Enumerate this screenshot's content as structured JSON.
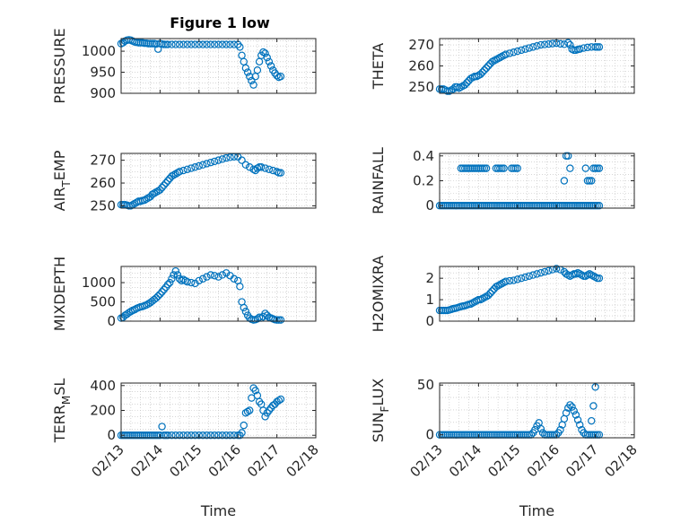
{
  "title": "Figure 1 low",
  "colors": {
    "marker": "#0072BD",
    "axis": "#262626",
    "grid": "#bdbdbd"
  },
  "chart_data": [
    {
      "type": "scatter",
      "id": "pressure",
      "ylabel_main": "PRESSURE",
      "ylabel_sub": "",
      "ylabel_tail": "",
      "xlim": [
        13,
        18
      ],
      "ylim": [
        900,
        1030
      ],
      "yticks": [
        900,
        950,
        1000
      ],
      "ytick_labels": [
        "900",
        "950",
        "1000"
      ],
      "x": [
        13.0,
        13.05,
        13.1,
        13.15,
        13.2,
        13.25,
        13.3,
        13.35,
        13.4,
        13.45,
        13.5,
        13.55,
        13.6,
        13.65,
        13.7,
        13.75,
        13.8,
        13.85,
        13.9,
        13.95,
        14.0,
        14.05,
        14.1,
        14.15,
        14.2,
        14.3,
        14.4,
        14.5,
        14.6,
        14.7,
        14.8,
        14.9,
        15.0,
        15.1,
        15.2,
        15.3,
        15.4,
        15.5,
        15.6,
        15.7,
        15.8,
        15.9,
        16.0,
        16.05,
        16.1,
        16.15,
        16.2,
        16.25,
        16.3,
        16.35,
        16.4,
        16.45,
        16.5,
        16.55,
        16.6,
        16.65,
        16.7,
        16.75,
        16.8,
        16.85,
        16.9,
        16.95,
        17.0,
        17.05,
        17.1
      ],
      "y": [
        1018,
        1020,
        1024,
        1026,
        1027,
        1026,
        1024,
        1022,
        1021,
        1020,
        1020,
        1020,
        1019,
        1019,
        1018,
        1018,
        1018,
        1018,
        1017,
        1005,
        1018,
        1017,
        1016,
        1016,
        1016,
        1016,
        1016,
        1016,
        1016,
        1016,
        1016,
        1016,
        1016,
        1016,
        1016,
        1016,
        1016,
        1016,
        1016,
        1016,
        1016,
        1016,
        1016,
        1010,
        990,
        975,
        960,
        950,
        940,
        930,
        920,
        940,
        955,
        975,
        990,
        998,
        995,
        985,
        975,
        965,
        955,
        948,
        942,
        938,
        940
      ]
    },
    {
      "type": "scatter",
      "id": "theta",
      "ylabel_main": "THETA",
      "ylabel_sub": "",
      "ylabel_tail": "",
      "xlim": [
        13,
        18
      ],
      "ylim": [
        247,
        273
      ],
      "yticks": [
        250,
        260,
        270
      ],
      "ytick_labels": [
        "250",
        "260",
        "270"
      ],
      "x": [
        13.0,
        13.05,
        13.1,
        13.15,
        13.2,
        13.25,
        13.3,
        13.35,
        13.4,
        13.45,
        13.5,
        13.55,
        13.6,
        13.65,
        13.7,
        13.75,
        13.8,
        13.85,
        13.9,
        13.95,
        14.0,
        14.05,
        14.1,
        14.15,
        14.2,
        14.25,
        14.3,
        14.35,
        14.4,
        14.45,
        14.5,
        14.55,
        14.6,
        14.65,
        14.7,
        14.8,
        14.9,
        15.0,
        15.1,
        15.2,
        15.3,
        15.4,
        15.5,
        15.6,
        15.7,
        15.8,
        15.9,
        16.0,
        16.1,
        16.2,
        16.3,
        16.35,
        16.4,
        16.45,
        16.5,
        16.55,
        16.6,
        16.7,
        16.8,
        16.9,
        17.0,
        17.05,
        17.1
      ],
      "y": [
        249,
        249,
        249,
        248.5,
        248,
        248,
        248.5,
        249,
        250,
        250,
        249.5,
        250,
        250.5,
        251,
        252,
        253,
        254,
        254.5,
        255,
        255,
        255.5,
        256,
        257,
        258,
        259,
        260,
        261,
        262,
        262.5,
        263,
        263.5,
        264,
        264.5,
        265,
        265.5,
        266,
        266.5,
        267,
        267.5,
        268,
        268.5,
        269,
        269.5,
        270,
        270.2,
        270.4,
        270.6,
        270.8,
        270.5,
        270.3,
        271,
        270,
        268,
        267.5,
        267.5,
        267.8,
        268,
        268.5,
        268.8,
        269,
        269,
        269,
        269
      ]
    },
    {
      "type": "scatter",
      "id": "air_temp",
      "ylabel_main": "AIR",
      "ylabel_sub": "T",
      "ylabel_tail": "EMP",
      "xlim": [
        13,
        18
      ],
      "ylim": [
        249,
        273
      ],
      "yticks": [
        250,
        260,
        270
      ],
      "ytick_labels": [
        "250",
        "260",
        "270"
      ],
      "x": [
        13.0,
        13.05,
        13.1,
        13.15,
        13.2,
        13.25,
        13.3,
        13.35,
        13.4,
        13.45,
        13.5,
        13.55,
        13.6,
        13.65,
        13.7,
        13.75,
        13.8,
        13.85,
        13.9,
        13.95,
        14.0,
        14.05,
        14.1,
        14.15,
        14.2,
        14.25,
        14.3,
        14.35,
        14.4,
        14.45,
        14.5,
        14.6,
        14.7,
        14.8,
        14.9,
        15.0,
        15.1,
        15.2,
        15.3,
        15.4,
        15.5,
        15.6,
        15.7,
        15.8,
        15.9,
        16.0,
        16.1,
        16.2,
        16.3,
        16.4,
        16.45,
        16.5,
        16.55,
        16.6,
        16.7,
        16.8,
        16.9,
        17.0,
        17.05,
        17.1
      ],
      "y": [
        250.5,
        250.5,
        250.5,
        250.3,
        250,
        250,
        250.5,
        251,
        251.5,
        252,
        252,
        252.3,
        252.5,
        253,
        253.5,
        254,
        255,
        255.5,
        256,
        256.5,
        257,
        258,
        259,
        260,
        261,
        262,
        263,
        263.5,
        264,
        264.5,
        265,
        265.5,
        266,
        266.5,
        267,
        267.5,
        268,
        268.5,
        269,
        269.5,
        270,
        270.5,
        271,
        271.3,
        271.5,
        271.5,
        270,
        268,
        267,
        266,
        265.5,
        266.5,
        267,
        267,
        266.5,
        266,
        265.5,
        265,
        264.5,
        264.5
      ]
    },
    {
      "type": "scatter",
      "id": "rainfall",
      "ylabel_main": "RAINFALL",
      "ylabel_sub": "",
      "ylabel_tail": "",
      "xlim": [
        13,
        18
      ],
      "ylim": [
        -0.02,
        0.42
      ],
      "yticks": [
        0,
        0.2,
        0.4
      ],
      "ytick_labels": [
        "0",
        "0.2",
        "0.4"
      ],
      "x": [
        13.0,
        13.05,
        13.1,
        13.15,
        13.2,
        13.25,
        13.3,
        13.35,
        13.4,
        13.45,
        13.5,
        13.55,
        13.6,
        13.65,
        13.7,
        13.75,
        13.8,
        13.85,
        13.9,
        13.95,
        14.0,
        14.05,
        14.1,
        14.15,
        14.2,
        14.25,
        14.3,
        14.35,
        14.4,
        14.45,
        14.5,
        14.55,
        14.6,
        14.65,
        14.7,
        14.75,
        14.8,
        14.85,
        14.9,
        14.95,
        15.0,
        15.05,
        15.1,
        15.15,
        15.2,
        15.25,
        15.3,
        15.35,
        15.4,
        15.45,
        15.5,
        15.55,
        15.6,
        15.65,
        15.7,
        15.75,
        15.8,
        15.85,
        15.9,
        15.95,
        16.0,
        16.05,
        16.1,
        16.15,
        16.2,
        16.25,
        16.3,
        16.35,
        16.4,
        16.45,
        16.5,
        16.55,
        16.6,
        16.65,
        16.7,
        16.75,
        16.8,
        16.85,
        16.9,
        16.95,
        17.0,
        17.05,
        17.1,
        13.55,
        13.6,
        13.65,
        13.7,
        13.75,
        13.8,
        13.85,
        13.9,
        13.95,
        14.0,
        14.05,
        14.1,
        14.15,
        14.2,
        14.45,
        14.5,
        14.55,
        14.6,
        14.65,
        14.85,
        14.9,
        14.95,
        15.0,
        16.2,
        16.25,
        16.3,
        16.35,
        16.75,
        16.8,
        16.85,
        16.9,
        16.95,
        17.0,
        17.05,
        17.1
      ],
      "y": [
        0,
        0,
        0,
        0,
        0,
        0,
        0,
        0,
        0,
        0,
        0,
        0,
        0,
        0,
        0,
        0,
        0,
        0,
        0,
        0,
        0,
        0,
        0,
        0,
        0,
        0,
        0,
        0,
        0,
        0,
        0,
        0,
        0,
        0,
        0,
        0,
        0,
        0,
        0,
        0,
        0,
        0,
        0,
        0,
        0,
        0,
        0,
        0,
        0,
        0,
        0,
        0,
        0,
        0,
        0,
        0,
        0,
        0,
        0,
        0,
        0,
        0,
        0,
        0,
        0,
        0,
        0,
        0,
        0,
        0,
        0,
        0,
        0,
        0,
        0,
        0,
        0,
        0,
        0,
        0,
        0,
        0,
        0,
        0.3,
        0.3,
        0.3,
        0.3,
        0.3,
        0.3,
        0.3,
        0.3,
        0.3,
        0.3,
        0.3,
        0.3,
        0.3,
        0.3,
        0.3,
        0.3,
        0.3,
        0.3,
        0.3,
        0.3,
        0.3,
        0.3,
        0.3,
        0.2,
        0.4,
        0.4,
        0.3,
        0.3,
        0.2,
        0.2,
        0.2,
        0.3,
        0.3,
        0.3,
        0.3
      ]
    },
    {
      "type": "scatter",
      "id": "mixdepth",
      "ylabel_main": "MIXDEPTH",
      "ylabel_sub": "",
      "ylabel_tail": "",
      "xlim": [
        13,
        18
      ],
      "ylim": [
        0,
        1420
      ],
      "yticks": [
        0,
        500,
        1000
      ],
      "ytick_labels": [
        "0",
        "500",
        "1000"
      ],
      "x": [
        13.0,
        13.05,
        13.1,
        13.15,
        13.2,
        13.25,
        13.3,
        13.35,
        13.4,
        13.45,
        13.5,
        13.55,
        13.6,
        13.65,
        13.7,
        13.75,
        13.8,
        13.85,
        13.9,
        13.95,
        14.0,
        14.05,
        14.1,
        14.15,
        14.2,
        14.25,
        14.3,
        14.35,
        14.4,
        14.45,
        14.5,
        14.55,
        14.6,
        14.65,
        14.7,
        14.8,
        14.9,
        15.0,
        15.1,
        15.2,
        15.3,
        15.4,
        15.5,
        15.6,
        15.7,
        15.8,
        15.9,
        16.0,
        16.05,
        16.1,
        16.15,
        16.2,
        16.25,
        16.3,
        16.35,
        16.4,
        16.45,
        16.5,
        16.55,
        16.6,
        16.65,
        16.7,
        16.75,
        16.8,
        16.85,
        16.9,
        16.95,
        17.0,
        17.05,
        17.1
      ],
      "y": [
        80,
        100,
        150,
        180,
        220,
        250,
        280,
        300,
        330,
        350,
        370,
        380,
        400,
        420,
        450,
        480,
        520,
        560,
        600,
        650,
        700,
        760,
        820,
        880,
        950,
        1000,
        1100,
        1200,
        1300,
        1200,
        1100,
        1050,
        1080,
        1050,
        1020,
        1000,
        980,
        1050,
        1100,
        1150,
        1200,
        1180,
        1150,
        1200,
        1250,
        1180,
        1100,
        1050,
        900,
        500,
        350,
        250,
        150,
        80,
        50,
        30,
        40,
        60,
        100,
        80,
        120,
        200,
        150,
        100,
        80,
        60,
        40,
        30,
        30,
        30
      ]
    },
    {
      "type": "scatter",
      "id": "h2omixra",
      "ylabel_main": "H2OMIXRA",
      "ylabel_sub": "",
      "ylabel_tail": "",
      "xlim": [
        13,
        18
      ],
      "ylim": [
        0,
        2.55
      ],
      "yticks": [
        0,
        1,
        2
      ],
      "ytick_labels": [
        "0",
        "1",
        "2"
      ],
      "x": [
        13.0,
        13.05,
        13.1,
        13.15,
        13.2,
        13.25,
        13.3,
        13.35,
        13.4,
        13.45,
        13.5,
        13.55,
        13.6,
        13.65,
        13.7,
        13.75,
        13.8,
        13.85,
        13.9,
        13.95,
        14.0,
        14.05,
        14.1,
        14.15,
        14.2,
        14.25,
        14.3,
        14.35,
        14.4,
        14.45,
        14.5,
        14.55,
        14.6,
        14.65,
        14.7,
        14.8,
        14.9,
        15.0,
        15.1,
        15.2,
        15.3,
        15.4,
        15.5,
        15.6,
        15.7,
        15.8,
        15.9,
        16.0,
        16.1,
        16.2,
        16.25,
        16.3,
        16.35,
        16.4,
        16.45,
        16.5,
        16.55,
        16.6,
        16.65,
        16.7,
        16.75,
        16.8,
        16.85,
        16.9,
        16.95,
        17.0,
        17.05,
        17.1
      ],
      "y": [
        0.5,
        0.5,
        0.5,
        0.5,
        0.5,
        0.52,
        0.55,
        0.58,
        0.6,
        0.62,
        0.65,
        0.68,
        0.7,
        0.72,
        0.75,
        0.78,
        0.8,
        0.85,
        0.9,
        0.95,
        1.0,
        1.0,
        1.05,
        1.1,
        1.15,
        1.2,
        1.3,
        1.4,
        1.5,
        1.6,
        1.65,
        1.7,
        1.75,
        1.8,
        1.85,
        1.88,
        1.9,
        1.95,
        2.0,
        2.05,
        2.1,
        2.15,
        2.2,
        2.25,
        2.3,
        2.35,
        2.4,
        2.45,
        2.4,
        2.3,
        2.2,
        2.15,
        2.1,
        2.15,
        2.2,
        2.2,
        2.25,
        2.2,
        2.15,
        2.1,
        2.1,
        2.15,
        2.2,
        2.15,
        2.1,
        2.05,
        2.0,
        2.0
      ]
    },
    {
      "type": "scatter",
      "id": "terr_msl",
      "ylabel_main": "TERR",
      "ylabel_sub": "M",
      "ylabel_tail": "SL",
      "xlim": [
        13,
        18
      ],
      "ylim": [
        -20,
        420
      ],
      "yticks": [
        0,
        200,
        400
      ],
      "ytick_labels": [
        "0",
        "200",
        "400"
      ],
      "x": [
        13.0,
        13.05,
        13.1,
        13.15,
        13.2,
        13.25,
        13.3,
        13.35,
        13.4,
        13.45,
        13.5,
        13.55,
        13.6,
        13.65,
        13.7,
        13.75,
        13.8,
        13.85,
        13.9,
        13.95,
        14.0,
        14.05,
        14.1,
        14.15,
        14.2,
        14.3,
        14.4,
        14.5,
        14.6,
        14.7,
        14.8,
        14.9,
        15.0,
        15.1,
        15.2,
        15.3,
        15.4,
        15.5,
        15.6,
        15.7,
        15.8,
        15.9,
        16.0,
        16.05,
        16.1,
        16.15,
        16.2,
        16.25,
        16.3,
        16.35,
        16.4,
        16.45,
        16.5,
        16.55,
        16.6,
        16.65,
        16.7,
        16.75,
        16.8,
        16.85,
        16.9,
        16.95,
        17.0,
        17.05,
        17.1
      ],
      "y": [
        0,
        0,
        0,
        0,
        0,
        0,
        0,
        0,
        0,
        0,
        0,
        0,
        0,
        0,
        0,
        0,
        0,
        0,
        0,
        0,
        0,
        70,
        0,
        0,
        0,
        0,
        0,
        0,
        0,
        0,
        0,
        0,
        0,
        0,
        0,
        0,
        0,
        0,
        0,
        0,
        0,
        0,
        0,
        0,
        20,
        80,
        180,
        190,
        200,
        300,
        380,
        360,
        320,
        270,
        250,
        200,
        150,
        180,
        200,
        220,
        240,
        250,
        270,
        280,
        290
      ]
    },
    {
      "type": "scatter",
      "id": "sun_flux",
      "ylabel_main": "SUN",
      "ylabel_sub": "F",
      "ylabel_tail": "LUX",
      "xlim": [
        13,
        18
      ],
      "ylim": [
        -3,
        52
      ],
      "yticks": [
        0,
        50
      ],
      "ytick_labels": [
        "0",
        "50"
      ],
      "x": [
        13.0,
        13.05,
        13.1,
        13.15,
        13.2,
        13.25,
        13.3,
        13.35,
        13.4,
        13.45,
        13.5,
        13.55,
        13.6,
        13.65,
        13.7,
        13.75,
        13.8,
        13.85,
        13.9,
        13.95,
        14.0,
        14.05,
        14.1,
        14.15,
        14.2,
        14.25,
        14.3,
        14.35,
        14.4,
        14.45,
        14.5,
        14.55,
        14.6,
        14.65,
        14.7,
        14.75,
        14.8,
        14.85,
        14.9,
        14.95,
        15.0,
        15.05,
        15.1,
        15.15,
        15.2,
        15.25,
        15.3,
        15.35,
        15.4,
        15.45,
        15.5,
        15.55,
        15.6,
        15.65,
        15.7,
        15.75,
        15.8,
        15.85,
        15.9,
        15.95,
        16.0,
        16.05,
        16.1,
        16.15,
        16.2,
        16.25,
        16.3,
        16.35,
        16.4,
        16.45,
        16.5,
        16.55,
        16.6,
        16.65,
        16.7,
        16.75,
        16.8,
        16.85,
        16.9,
        16.95,
        17.0,
        17.05,
        17.1,
        16.9,
        16.95,
        17.0
      ],
      "y": [
        0,
        0,
        0,
        0,
        0,
        0,
        0,
        0,
        0,
        0,
        0,
        0,
        0,
        0,
        0,
        0,
        0,
        0,
        0,
        0,
        0,
        0,
        0,
        0,
        0,
        0,
        0,
        0,
        0,
        0,
        0,
        0,
        0,
        0,
        0,
        0,
        0,
        0,
        0,
        0,
        0,
        0,
        0,
        0,
        0,
        0,
        0,
        0,
        2,
        5,
        9,
        12,
        6,
        2,
        0,
        0,
        0,
        0,
        0,
        0,
        0,
        2,
        5,
        10,
        16,
        22,
        27,
        30,
        28,
        24,
        20,
        15,
        10,
        5,
        2,
        0,
        0,
        0,
        0,
        0,
        0,
        0,
        0,
        14,
        29,
        48
      ]
    }
  ],
  "xaxis": {
    "label": "Time",
    "ticks": [
      13,
      14,
      15,
      16,
      17,
      18
    ],
    "tick_labels": [
      "02/13",
      "02/14",
      "02/15",
      "02/16",
      "02/17",
      "02/18"
    ]
  }
}
